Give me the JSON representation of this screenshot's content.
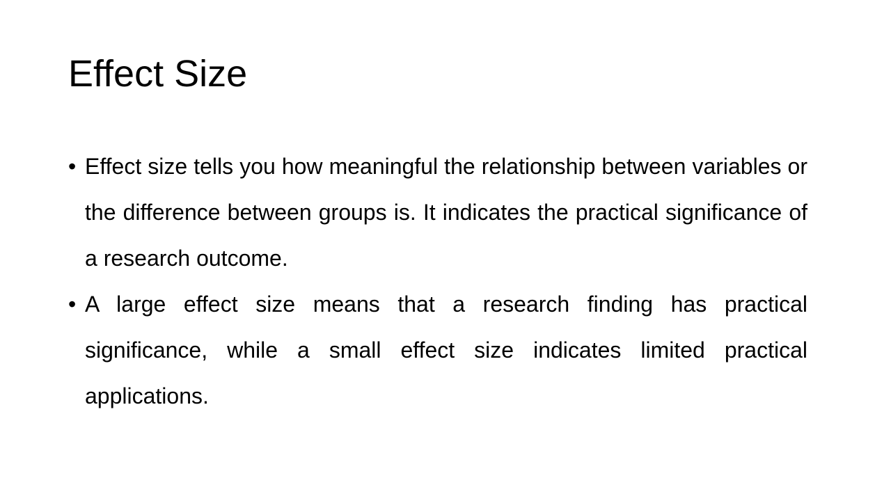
{
  "slide": {
    "title": "Effect Size",
    "bullet_symbol": "•",
    "bullets": [
      {
        "text": "Effect size tells you how meaningful the relationship between variables or the difference between groups is. It indicates the practical significance of a research outcome."
      },
      {
        "text": "A large effect size means that a research finding has practical significance, while a small effect size indicates limited practical applications."
      }
    ]
  }
}
